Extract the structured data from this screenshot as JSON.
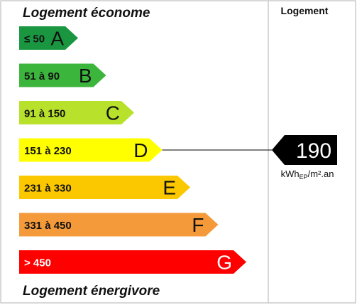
{
  "chart_data": {
    "type": "bar",
    "title": "",
    "header_top": "Logement économe",
    "header_bottom": "Logement énergivore",
    "column_label": "Logement",
    "classes": [
      {
        "range": "≤ 50",
        "letter": "A",
        "color": "#1a9641"
      },
      {
        "range": "51 à 90",
        "letter": "B",
        "color": "#3cb53c"
      },
      {
        "range": "91 à 150",
        "letter": "C",
        "color": "#b7e12a"
      },
      {
        "range": "151 à 230",
        "letter": "D",
        "color": "#ffff00"
      },
      {
        "range": "231 à 330",
        "letter": "E",
        "color": "#fbc800"
      },
      {
        "range": "331 à 450",
        "letter": "F",
        "color": "#f59a3a"
      },
      {
        "range": "> 450",
        "letter": "G",
        "color": "#ff0000"
      }
    ],
    "value": 190,
    "value_class": "D",
    "unit_prefix": "kWh",
    "unit_sub": "EP",
    "unit_suffix": "/m².an"
  }
}
